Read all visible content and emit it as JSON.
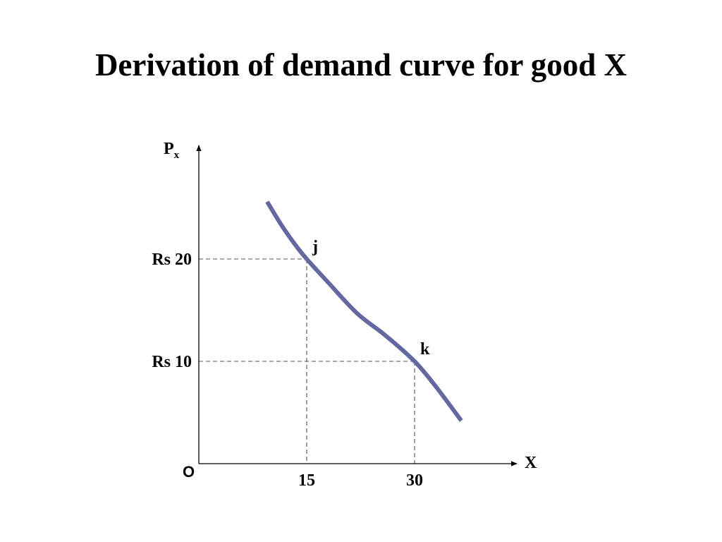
{
  "chart_data": {
    "type": "line",
    "title": "Derivation of demand curve for good X",
    "xlabel": "X",
    "ylabel": "P",
    "ylabel_sub": "x",
    "origin_label": "O",
    "x_ticks": [
      {
        "value": 15,
        "label": "15"
      },
      {
        "value": 30,
        "label": "30"
      }
    ],
    "y_ticks": [
      {
        "value": 20,
        "label": "Rs 20"
      },
      {
        "value": 10,
        "label": "Rs 10"
      }
    ],
    "points": [
      {
        "x": 15,
        "y": 20,
        "label": "j"
      },
      {
        "x": 30,
        "y": 10,
        "label": "k"
      }
    ],
    "curve": {
      "x": [
        9.5,
        11.5,
        13.5,
        15,
        18,
        22,
        26,
        30,
        33,
        36.5
      ],
      "y": [
        25.6,
        23.3,
        21.3,
        20,
        17.7,
        14.7,
        12.5,
        10,
        7.5,
        4.2
      ]
    },
    "curve_color": "#6468a0",
    "xlim": [
      0,
      45
    ],
    "ylim": [
      0,
      31
    ],
    "grid": false,
    "legend": "none"
  }
}
